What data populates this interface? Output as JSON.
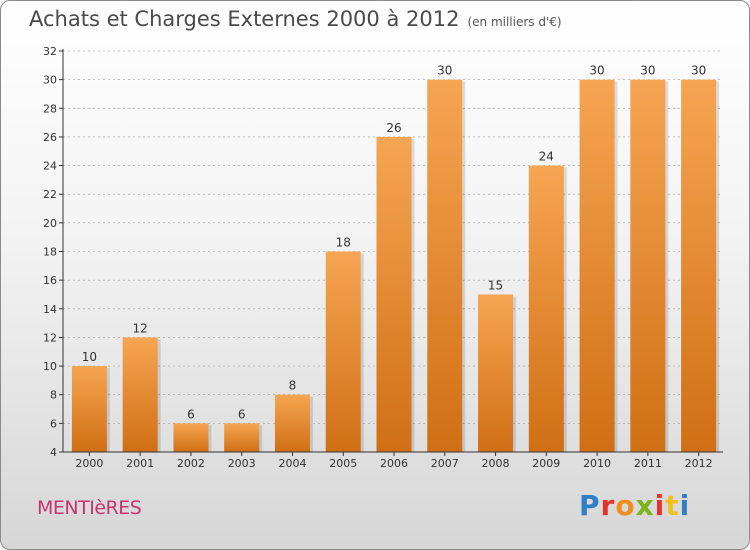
{
  "header": {
    "title": "Achats et Charges Externes 2000 à 2012",
    "subtitle": "(en milliers d'€)"
  },
  "footer": {
    "town": "MENTIèRES",
    "logo_text": "Proxiti",
    "logo_colors": [
      "#2e7fc4",
      "#e2342c",
      "#f28c1c",
      "#7ab51d",
      "#e2342c",
      "#f2c21c",
      "#2e7fc4"
    ]
  },
  "colors": {
    "bar_top": "#f6a552",
    "bar_bottom": "#d06f14",
    "axis": "#333333",
    "grid": "#999999"
  },
  "chart_data": {
    "type": "bar",
    "categories": [
      "2000",
      "2001",
      "2002",
      "2003",
      "2004",
      "2005",
      "2006",
      "2007",
      "2008",
      "2009",
      "2010",
      "2011",
      "2012"
    ],
    "values": [
      10,
      12,
      6,
      6,
      8,
      18,
      26,
      30,
      15,
      24,
      30,
      30,
      30
    ],
    "ylim": [
      4,
      32
    ],
    "yticks": [
      4,
      6,
      8,
      10,
      12,
      14,
      16,
      18,
      20,
      22,
      24,
      26,
      28,
      30,
      32
    ],
    "grid": true,
    "data_labels": true
  }
}
